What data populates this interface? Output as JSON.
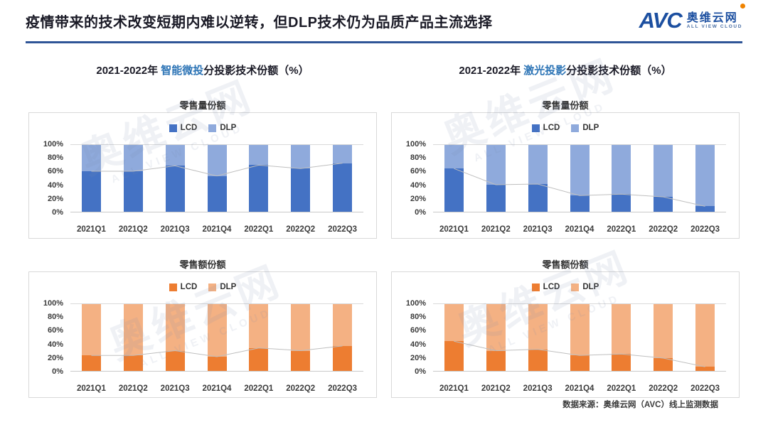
{
  "header": {
    "title": "疫情带来的技术改变短期内难以逆转，但DLP技术仍为品质产品主流选择",
    "logo": {
      "avc": "AVC",
      "name": "奥维云网",
      "sub": "ALL VIEW CLOUD"
    }
  },
  "columns": [
    {
      "subtitle_prefix": "2021-2022年 ",
      "subtitle_highlight": "智能微投",
      "subtitle_suffix": "分投影技术份额（%）"
    },
    {
      "subtitle_prefix": "2021-2022年 ",
      "subtitle_highlight": "激光投影",
      "subtitle_suffix": "分投影技术份额（%）"
    }
  ],
  "footer": {
    "source": "数据来源：奥维云网（AVC）线上监测数据"
  },
  "watermark": {
    "main": "奥维云网",
    "sub": "ALL VIEW CLOUD"
  },
  "colors": {
    "header_rule": "#2F5597",
    "subtitle_highlight": "#2E75B6",
    "lcd_blue": "#4472C4",
    "dlp_blue": "#8FAADC",
    "lcd_orange": "#ED7D31",
    "dlp_orange": "#F4B183",
    "trend_line": "#BFBFBF"
  },
  "chart_data": [
    {
      "id": "smart-projector-volume-share",
      "type": "bar",
      "stacked": true,
      "title": "零售量份额",
      "categories": [
        "2021Q1",
        "2021Q2",
        "2021Q3",
        "2021Q4",
        "2022Q1",
        "2022Q2",
        "2022Q3"
      ],
      "series": [
        {
          "name": "LCD",
          "color": "#4472C4",
          "values": [
            60,
            60,
            68,
            53,
            69,
            64,
            72
          ]
        },
        {
          "name": "DLP",
          "color": "#8FAADC",
          "values": [
            40,
            40,
            32,
            47,
            31,
            36,
            28
          ]
        }
      ],
      "ylim": [
        0,
        100
      ],
      "yticks": [
        "100%",
        "80%",
        "60%",
        "40%",
        "20%",
        "0%"
      ],
      "legend_position": "top",
      "trendline_follows": "LCD"
    },
    {
      "id": "laser-projector-volume-share",
      "type": "bar",
      "stacked": true,
      "title": "零售量份额",
      "categories": [
        "2021Q1",
        "2021Q2",
        "2021Q3",
        "2021Q4",
        "2022Q1",
        "2022Q2",
        "2022Q3"
      ],
      "series": [
        {
          "name": "LCD",
          "color": "#4472C4",
          "values": [
            64,
            40,
            41,
            24,
            26,
            22,
            8
          ]
        },
        {
          "name": "DLP",
          "color": "#8FAADC",
          "values": [
            36,
            60,
            59,
            76,
            74,
            78,
            92
          ]
        }
      ],
      "ylim": [
        0,
        100
      ],
      "yticks": [
        "100%",
        "80%",
        "60%",
        "40%",
        "20%",
        "0%"
      ],
      "legend_position": "top",
      "trendline_follows": "LCD"
    },
    {
      "id": "smart-projector-value-share",
      "type": "bar",
      "stacked": true,
      "title": "零售额份额",
      "categories": [
        "2021Q1",
        "2021Q2",
        "2021Q3",
        "2021Q4",
        "2022Q1",
        "2022Q2",
        "2022Q3"
      ],
      "series": [
        {
          "name": "LCD",
          "color": "#ED7D31",
          "values": [
            23,
            23,
            30,
            21,
            34,
            30,
            37
          ]
        },
        {
          "name": "DLP",
          "color": "#F4B183",
          "values": [
            77,
            77,
            70,
            79,
            66,
            70,
            63
          ]
        }
      ],
      "ylim": [
        0,
        100
      ],
      "yticks": [
        "100%",
        "80%",
        "60%",
        "40%",
        "20%",
        "0%"
      ],
      "legend_position": "top",
      "trendline_follows": "LCD"
    },
    {
      "id": "laser-projector-value-share",
      "type": "bar",
      "stacked": true,
      "title": "零售额份额",
      "categories": [
        "2021Q1",
        "2021Q2",
        "2021Q3",
        "2021Q4",
        "2022Q1",
        "2022Q2",
        "2022Q3"
      ],
      "series": [
        {
          "name": "LCD",
          "color": "#ED7D31",
          "values": [
            44,
            30,
            32,
            23,
            25,
            19,
            6
          ]
        },
        {
          "name": "DLP",
          "color": "#F4B183",
          "values": [
            56,
            70,
            68,
            77,
            75,
            81,
            94
          ]
        }
      ],
      "ylim": [
        0,
        100
      ],
      "yticks": [
        "100%",
        "80%",
        "60%",
        "40%",
        "20%",
        "0%"
      ],
      "legend_position": "top",
      "trendline_follows": "LCD"
    }
  ]
}
